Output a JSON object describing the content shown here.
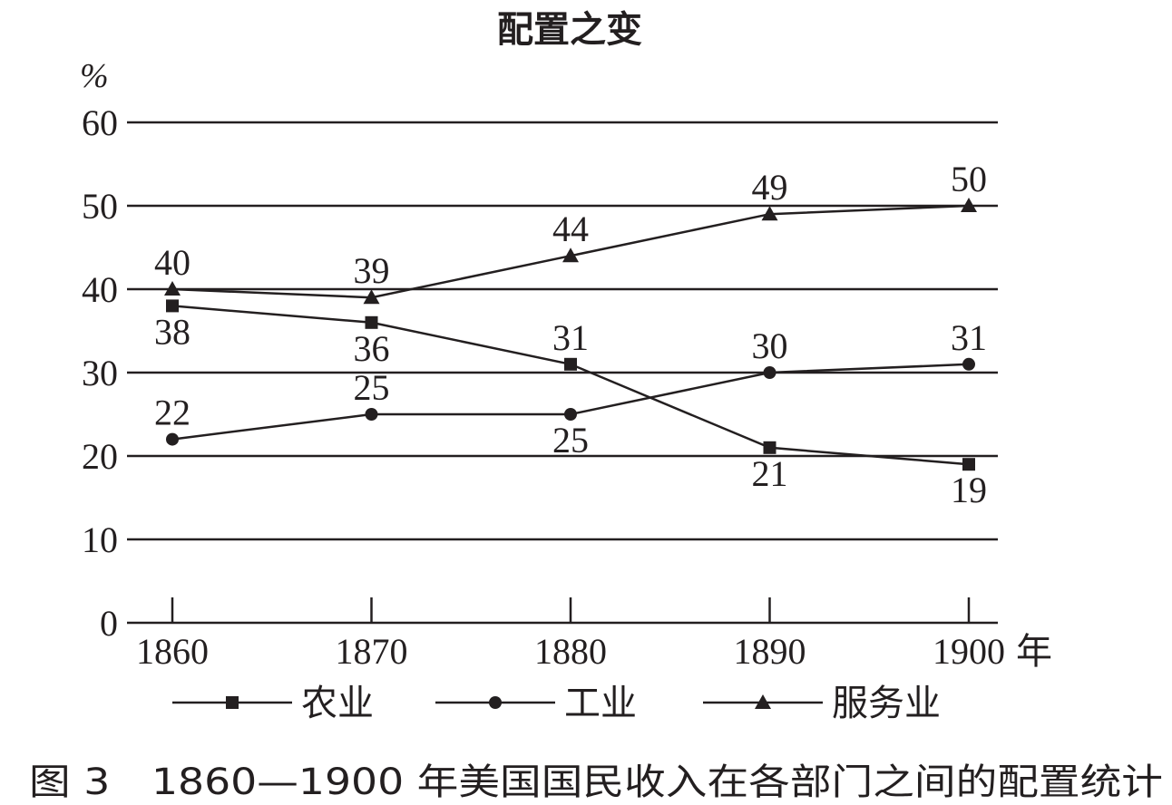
{
  "chart_data": {
    "type": "line",
    "title": "配置之变",
    "ylabel": "%",
    "xlabel": "年",
    "x": [
      1860,
      1870,
      1880,
      1890,
      1900
    ],
    "ylim": [
      0,
      60
    ],
    "yticks": [
      0,
      10,
      20,
      30,
      40,
      50,
      60
    ],
    "grid": true,
    "legend_position": "bottom",
    "series": [
      {
        "name": "农业",
        "marker": "square",
        "values": [
          38,
          36,
          31,
          21,
          19
        ],
        "label_side": [
          "below",
          "below",
          "above",
          "below",
          "below"
        ]
      },
      {
        "name": "工业",
        "marker": "circle",
        "values": [
          22,
          25,
          25,
          30,
          31
        ],
        "label_side": [
          "above",
          "above",
          "below",
          "above",
          "above"
        ]
      },
      {
        "name": "服务业",
        "marker": "triangle",
        "values": [
          40,
          39,
          44,
          49,
          50
        ],
        "label_side": [
          "above",
          "above",
          "above",
          "above",
          "above"
        ]
      }
    ],
    "caption": "图 3　1860—1900 年美国国民收入在各部门之间的配置统计",
    "colors": {
      "ink": "#231f20",
      "background": "#ffffff"
    }
  }
}
